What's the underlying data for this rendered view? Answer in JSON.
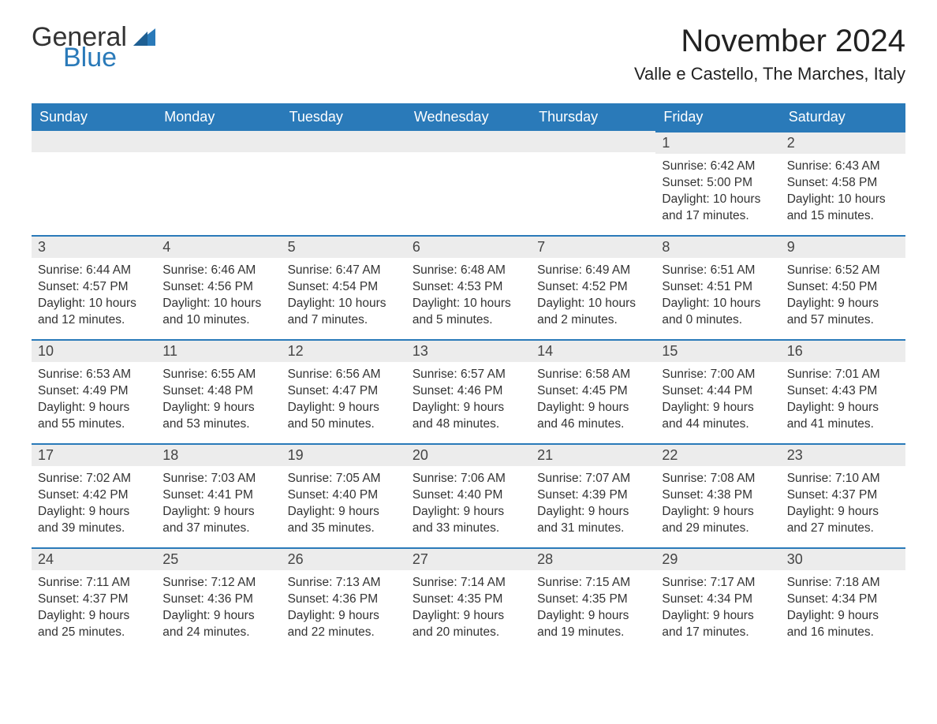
{
  "logo": {
    "word1": "General",
    "word2": "Blue"
  },
  "title": "November 2024",
  "location": "Valle e Castello, The Marches, Italy",
  "colors": {
    "header_bg": "#2a7ab9",
    "header_text": "#ffffff",
    "day_num_bg": "#ececec",
    "day_border": "#2a7ab9",
    "body_text": "#333333",
    "logo_blue": "#2a7ab9"
  },
  "typography": {
    "title_fontsize": 40,
    "location_fontsize": 22,
    "header_fontsize": 18,
    "body_fontsize": 15.5
  },
  "day_headers": [
    "Sunday",
    "Monday",
    "Tuesday",
    "Wednesday",
    "Thursday",
    "Friday",
    "Saturday"
  ],
  "weeks": [
    [
      null,
      null,
      null,
      null,
      null,
      {
        "n": "1",
        "sr": "Sunrise: 6:42 AM",
        "ss": "Sunset: 5:00 PM",
        "d1": "Daylight: 10 hours",
        "d2": "and 17 minutes."
      },
      {
        "n": "2",
        "sr": "Sunrise: 6:43 AM",
        "ss": "Sunset: 4:58 PM",
        "d1": "Daylight: 10 hours",
        "d2": "and 15 minutes."
      }
    ],
    [
      {
        "n": "3",
        "sr": "Sunrise: 6:44 AM",
        "ss": "Sunset: 4:57 PM",
        "d1": "Daylight: 10 hours",
        "d2": "and 12 minutes."
      },
      {
        "n": "4",
        "sr": "Sunrise: 6:46 AM",
        "ss": "Sunset: 4:56 PM",
        "d1": "Daylight: 10 hours",
        "d2": "and 10 minutes."
      },
      {
        "n": "5",
        "sr": "Sunrise: 6:47 AM",
        "ss": "Sunset: 4:54 PM",
        "d1": "Daylight: 10 hours",
        "d2": "and 7 minutes."
      },
      {
        "n": "6",
        "sr": "Sunrise: 6:48 AM",
        "ss": "Sunset: 4:53 PM",
        "d1": "Daylight: 10 hours",
        "d2": "and 5 minutes."
      },
      {
        "n": "7",
        "sr": "Sunrise: 6:49 AM",
        "ss": "Sunset: 4:52 PM",
        "d1": "Daylight: 10 hours",
        "d2": "and 2 minutes."
      },
      {
        "n": "8",
        "sr": "Sunrise: 6:51 AM",
        "ss": "Sunset: 4:51 PM",
        "d1": "Daylight: 10 hours",
        "d2": "and 0 minutes."
      },
      {
        "n": "9",
        "sr": "Sunrise: 6:52 AM",
        "ss": "Sunset: 4:50 PM",
        "d1": "Daylight: 9 hours",
        "d2": "and 57 minutes."
      }
    ],
    [
      {
        "n": "10",
        "sr": "Sunrise: 6:53 AM",
        "ss": "Sunset: 4:49 PM",
        "d1": "Daylight: 9 hours",
        "d2": "and 55 minutes."
      },
      {
        "n": "11",
        "sr": "Sunrise: 6:55 AM",
        "ss": "Sunset: 4:48 PM",
        "d1": "Daylight: 9 hours",
        "d2": "and 53 minutes."
      },
      {
        "n": "12",
        "sr": "Sunrise: 6:56 AM",
        "ss": "Sunset: 4:47 PM",
        "d1": "Daylight: 9 hours",
        "d2": "and 50 minutes."
      },
      {
        "n": "13",
        "sr": "Sunrise: 6:57 AM",
        "ss": "Sunset: 4:46 PM",
        "d1": "Daylight: 9 hours",
        "d2": "and 48 minutes."
      },
      {
        "n": "14",
        "sr": "Sunrise: 6:58 AM",
        "ss": "Sunset: 4:45 PM",
        "d1": "Daylight: 9 hours",
        "d2": "and 46 minutes."
      },
      {
        "n": "15",
        "sr": "Sunrise: 7:00 AM",
        "ss": "Sunset: 4:44 PM",
        "d1": "Daylight: 9 hours",
        "d2": "and 44 minutes."
      },
      {
        "n": "16",
        "sr": "Sunrise: 7:01 AM",
        "ss": "Sunset: 4:43 PM",
        "d1": "Daylight: 9 hours",
        "d2": "and 41 minutes."
      }
    ],
    [
      {
        "n": "17",
        "sr": "Sunrise: 7:02 AM",
        "ss": "Sunset: 4:42 PM",
        "d1": "Daylight: 9 hours",
        "d2": "and 39 minutes."
      },
      {
        "n": "18",
        "sr": "Sunrise: 7:03 AM",
        "ss": "Sunset: 4:41 PM",
        "d1": "Daylight: 9 hours",
        "d2": "and 37 minutes."
      },
      {
        "n": "19",
        "sr": "Sunrise: 7:05 AM",
        "ss": "Sunset: 4:40 PM",
        "d1": "Daylight: 9 hours",
        "d2": "and 35 minutes."
      },
      {
        "n": "20",
        "sr": "Sunrise: 7:06 AM",
        "ss": "Sunset: 4:40 PM",
        "d1": "Daylight: 9 hours",
        "d2": "and 33 minutes."
      },
      {
        "n": "21",
        "sr": "Sunrise: 7:07 AM",
        "ss": "Sunset: 4:39 PM",
        "d1": "Daylight: 9 hours",
        "d2": "and 31 minutes."
      },
      {
        "n": "22",
        "sr": "Sunrise: 7:08 AM",
        "ss": "Sunset: 4:38 PM",
        "d1": "Daylight: 9 hours",
        "d2": "and 29 minutes."
      },
      {
        "n": "23",
        "sr": "Sunrise: 7:10 AM",
        "ss": "Sunset: 4:37 PM",
        "d1": "Daylight: 9 hours",
        "d2": "and 27 minutes."
      }
    ],
    [
      {
        "n": "24",
        "sr": "Sunrise: 7:11 AM",
        "ss": "Sunset: 4:37 PM",
        "d1": "Daylight: 9 hours",
        "d2": "and 25 minutes."
      },
      {
        "n": "25",
        "sr": "Sunrise: 7:12 AM",
        "ss": "Sunset: 4:36 PM",
        "d1": "Daylight: 9 hours",
        "d2": "and 24 minutes."
      },
      {
        "n": "26",
        "sr": "Sunrise: 7:13 AM",
        "ss": "Sunset: 4:36 PM",
        "d1": "Daylight: 9 hours",
        "d2": "and 22 minutes."
      },
      {
        "n": "27",
        "sr": "Sunrise: 7:14 AM",
        "ss": "Sunset: 4:35 PM",
        "d1": "Daylight: 9 hours",
        "d2": "and 20 minutes."
      },
      {
        "n": "28",
        "sr": "Sunrise: 7:15 AM",
        "ss": "Sunset: 4:35 PM",
        "d1": "Daylight: 9 hours",
        "d2": "and 19 minutes."
      },
      {
        "n": "29",
        "sr": "Sunrise: 7:17 AM",
        "ss": "Sunset: 4:34 PM",
        "d1": "Daylight: 9 hours",
        "d2": "and 17 minutes."
      },
      {
        "n": "30",
        "sr": "Sunrise: 7:18 AM",
        "ss": "Sunset: 4:34 PM",
        "d1": "Daylight: 9 hours",
        "d2": "and 16 minutes."
      }
    ]
  ]
}
